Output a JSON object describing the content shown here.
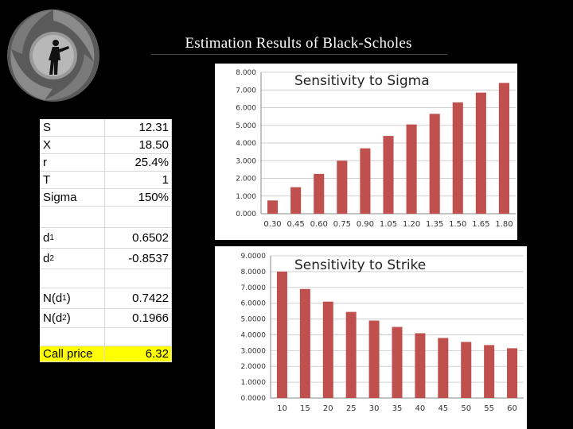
{
  "slide": {
    "title": "Estimation Results of Black-Scholes"
  },
  "colors": {
    "background": "#000000",
    "bar": "#c0504d",
    "highlight": "#ffff00"
  },
  "params": [
    {
      "label": "S",
      "value": "12.31"
    },
    {
      "label": "X",
      "value": "18.50"
    },
    {
      "label": "r",
      "value": "25.4%"
    },
    {
      "label": "T",
      "value": "1"
    },
    {
      "label": "Sigma",
      "value": "150%"
    },
    {
      "label": "d",
      "sub": "1",
      "value": "0.6502"
    },
    {
      "label": "d",
      "sub": "2",
      "value": "-0.8537"
    },
    {
      "label": "N(d",
      "sub": "1",
      "suffix": ")",
      "value": "0.7422"
    },
    {
      "label": "N(d",
      "sub": "2",
      "suffix": ")",
      "value": "0.1966"
    },
    {
      "label": "Call price",
      "value": "6.32"
    }
  ],
  "chart_data": [
    {
      "type": "bar",
      "title": "Sensitivity to Sigma",
      "categories": [
        "0.30",
        "0.45",
        "0.60",
        "0.75",
        "0.90",
        "1.05",
        "1.20",
        "1.35",
        "1.50",
        "1.65",
        "1.80"
      ],
      "values": [
        0.75,
        1.5,
        2.25,
        3.0,
        3.7,
        4.4,
        5.05,
        5.65,
        6.3,
        6.85,
        7.4
      ],
      "yticks": [
        "0.000",
        "1.000",
        "2.000",
        "3.000",
        "4.000",
        "5.000",
        "6.000",
        "7.000",
        "8.000"
      ],
      "ylim": [
        0,
        8
      ],
      "grid": true,
      "legend": "none"
    },
    {
      "type": "bar",
      "title": "Sensitivity to Strike",
      "categories": [
        "10",
        "15",
        "20",
        "25",
        "30",
        "35",
        "40",
        "45",
        "50",
        "55",
        "60"
      ],
      "values": [
        8.0,
        6.9,
        6.1,
        5.45,
        4.9,
        4.5,
        4.1,
        3.8,
        3.55,
        3.35,
        3.15
      ],
      "yticks": [
        "0.0000",
        "1.0000",
        "2.0000",
        "3.0000",
        "4.0000",
        "5.0000",
        "6.0000",
        "7.0000",
        "8.0000",
        "9.0000"
      ],
      "ylim": [
        0,
        9
      ],
      "grid": true,
      "legend": "none"
    }
  ]
}
